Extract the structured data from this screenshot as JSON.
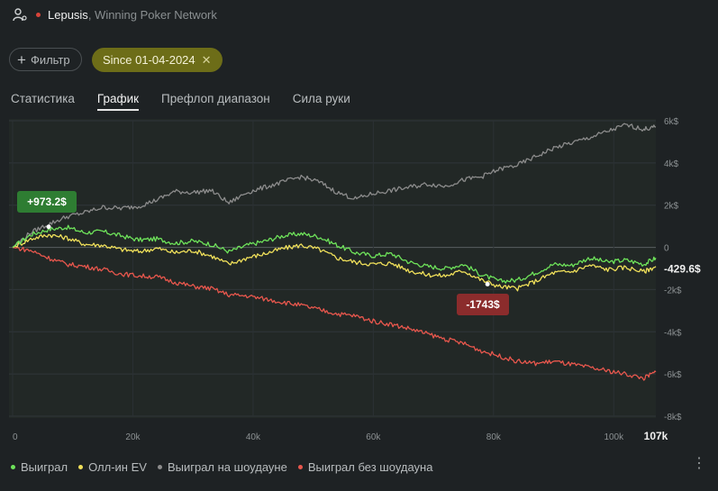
{
  "header": {
    "player_name": "Lepusis",
    "network": "Winning Poker Network",
    "status_color": "#d9443a"
  },
  "toolbar": {
    "filter_label": "Фильтр",
    "date_filter_label": "Since 01-04-2024"
  },
  "tabs": [
    {
      "label": "Статистика",
      "active": false
    },
    {
      "label": "График",
      "active": true
    },
    {
      "label": "Префлоп диапазон",
      "active": false
    },
    {
      "label": "Сила руки",
      "active": false
    }
  ],
  "chart_data": {
    "type": "line",
    "x_unit": "hands",
    "x_ticks": [
      "0",
      "20k",
      "40k",
      "60k",
      "80k",
      "100k"
    ],
    "x_max_label": "107k",
    "y_ticks": [
      "6k$",
      "4k$",
      "2k$",
      "0",
      "-2k$",
      "-4k$",
      "-6k$",
      "-8k$"
    ],
    "y_tick_values": [
      6000,
      4000,
      2000,
      0,
      -2000,
      -4000,
      -6000,
      -8000
    ],
    "xlim": [
      0,
      107000
    ],
    "ylim": [
      -8000,
      6000
    ],
    "grid": true,
    "legend_position": "bottom-left",
    "series": [
      {
        "name": "Выиграл",
        "color": "#6ee35a",
        "x": [
          0,
          3000,
          6000,
          9000,
          12000,
          15000,
          18000,
          21000,
          24000,
          27000,
          30000,
          33000,
          36000,
          39000,
          42000,
          45000,
          48000,
          51000,
          54000,
          57000,
          60000,
          63000,
          66000,
          69000,
          72000,
          75000,
          78000,
          81000,
          84000,
          87000,
          90000,
          93000,
          96000,
          99000,
          102000,
          105000,
          107000
        ],
        "y": [
          0,
          600,
          850,
          950,
          700,
          750,
          550,
          350,
          400,
          200,
          300,
          150,
          -200,
          100,
          300,
          550,
          650,
          500,
          100,
          -250,
          -400,
          -300,
          -700,
          -900,
          -1000,
          -800,
          -1300,
          -1600,
          -1550,
          -1200,
          -800,
          -850,
          -500,
          -700,
          -600,
          -800,
          -500
        ]
      },
      {
        "name": "Олл-ин EV",
        "color": "#f0e05a",
        "x": [
          0,
          3000,
          6000,
          9000,
          12000,
          15000,
          18000,
          21000,
          24000,
          27000,
          30000,
          33000,
          36000,
          39000,
          42000,
          45000,
          48000,
          51000,
          54000,
          57000,
          60000,
          63000,
          66000,
          69000,
          72000,
          75000,
          78000,
          81000,
          84000,
          87000,
          90000,
          93000,
          96000,
          99000,
          102000,
          105000,
          107000
        ],
        "y": [
          0,
          400,
          600,
          450,
          150,
          100,
          -100,
          -200,
          -50,
          -250,
          -150,
          -400,
          -800,
          -500,
          -300,
          -50,
          100,
          -100,
          -500,
          -700,
          -800,
          -750,
          -1100,
          -1300,
          -1350,
          -1100,
          -1550,
          -1850,
          -1950,
          -1600,
          -1200,
          -1150,
          -850,
          -1050,
          -950,
          -1150,
          -900
        ]
      },
      {
        "name": "Выиграл на шоудауне",
        "color": "#8c8c8c",
        "x": [
          0,
          3000,
          6000,
          9000,
          12000,
          15000,
          18000,
          21000,
          24000,
          27000,
          30000,
          33000,
          36000,
          39000,
          42000,
          45000,
          48000,
          51000,
          54000,
          57000,
          60000,
          63000,
          66000,
          69000,
          72000,
          75000,
          78000,
          81000,
          84000,
          87000,
          90000,
          93000,
          96000,
          99000,
          102000,
          105000,
          107000
        ],
        "y": [
          0,
          700,
          1100,
          1450,
          1650,
          1900,
          1850,
          1950,
          2250,
          2650,
          2600,
          2700,
          2100,
          2600,
          2850,
          3100,
          3350,
          3100,
          2600,
          2300,
          2550,
          2700,
          2850,
          3000,
          2900,
          3200,
          3350,
          3700,
          3900,
          4300,
          4700,
          4950,
          5200,
          5500,
          5800,
          5600,
          5700
        ]
      },
      {
        "name": "Выиграл без шоудауна",
        "color": "#e8574d",
        "x": [
          0,
          3000,
          6000,
          9000,
          12000,
          15000,
          18000,
          21000,
          24000,
          27000,
          30000,
          33000,
          36000,
          39000,
          42000,
          45000,
          48000,
          51000,
          54000,
          57000,
          60000,
          63000,
          66000,
          69000,
          72000,
          75000,
          78000,
          81000,
          84000,
          87000,
          90000,
          93000,
          96000,
          99000,
          102000,
          105000,
          107000
        ],
        "y": [
          0,
          -150,
          -500,
          -800,
          -900,
          -1050,
          -1250,
          -1350,
          -1400,
          -1650,
          -1850,
          -1950,
          -2250,
          -2300,
          -2450,
          -2600,
          -2750,
          -2950,
          -3150,
          -3250,
          -3500,
          -3650,
          -3850,
          -4100,
          -4350,
          -4550,
          -4900,
          -5150,
          -5400,
          -5500,
          -5400,
          -5550,
          -5700,
          -5850,
          -6000,
          -6200,
          -5900
        ]
      }
    ],
    "annotations": [
      {
        "label": "+973.2$",
        "x": 6000,
        "y": 973.2,
        "color": "#2e7d32"
      },
      {
        "label": "-1743$",
        "x": 79000,
        "y": -1743,
        "color": "#8b2c2c"
      }
    ],
    "end_label": "-429.6$"
  },
  "legend": [
    {
      "label": "Выиграл",
      "color": "#6ee35a"
    },
    {
      "label": "Олл-ин EV",
      "color": "#f0e05a"
    },
    {
      "label": "Выиграл на шоудауне",
      "color": "#8c8c8c"
    },
    {
      "label": "Выиграл без шоудауна",
      "color": "#e8574d"
    }
  ],
  "icons": {
    "user": "user-settings-icon",
    "more": "more-vertical-icon"
  }
}
